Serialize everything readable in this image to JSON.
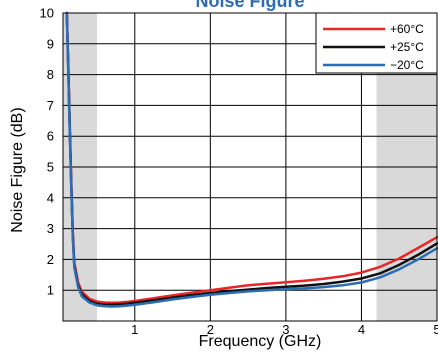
{
  "chart_data": {
    "type": "line",
    "title": "Noise Figure",
    "xlabel": "Frequency (GHz)",
    "ylabel": "Noise Figure (dB)",
    "xlim": [
      0.05,
      5
    ],
    "ylim": [
      0,
      10
    ],
    "x_ticks": [
      "1",
      "2",
      "3",
      "4",
      "5"
    ],
    "y_ticks": [
      "1",
      "2",
      "3",
      "4",
      "5",
      "6",
      "7",
      "8",
      "9",
      "10"
    ],
    "grid": true,
    "legend_position": "top-right",
    "shaded_ranges": [
      [
        0.05,
        0.5
      ],
      [
        4.2,
        5
      ]
    ],
    "series": [
      {
        "name": "+60°C",
        "color": "#e8262a",
        "x": [
          0.1,
          0.12,
          0.14,
          0.16,
          0.18,
          0.2,
          0.25,
          0.3,
          0.4,
          0.5,
          0.6,
          0.7,
          0.8,
          0.9,
          1.0,
          1.25,
          1.5,
          1.75,
          2.0,
          2.25,
          2.5,
          2.75,
          3.0,
          3.25,
          3.5,
          3.75,
          4.0,
          4.25,
          4.5,
          4.75,
          5.0
        ],
        "y": [
          10.0,
          8.3,
          6.3,
          4.5,
          2.9,
          1.9,
          1.25,
          0.95,
          0.72,
          0.63,
          0.6,
          0.59,
          0.6,
          0.62,
          0.65,
          0.74,
          0.83,
          0.92,
          1.0,
          1.08,
          1.16,
          1.21,
          1.26,
          1.31,
          1.37,
          1.45,
          1.57,
          1.76,
          2.03,
          2.37,
          2.72
        ]
      },
      {
        "name": "+25°C",
        "color": "#111111",
        "x": [
          0.1,
          0.12,
          0.14,
          0.16,
          0.18,
          0.2,
          0.25,
          0.3,
          0.4,
          0.5,
          0.6,
          0.7,
          0.8,
          0.9,
          1.0,
          1.25,
          1.5,
          1.75,
          2.0,
          2.25,
          2.5,
          2.75,
          3.0,
          3.25,
          3.5,
          3.75,
          4.0,
          4.25,
          4.5,
          4.75,
          5.0
        ],
        "y": [
          10.0,
          8.2,
          6.2,
          4.4,
          2.8,
          1.8,
          1.15,
          0.86,
          0.65,
          0.56,
          0.53,
          0.53,
          0.54,
          0.56,
          0.59,
          0.67,
          0.76,
          0.84,
          0.91,
          0.97,
          1.02,
          1.07,
          1.11,
          1.15,
          1.2,
          1.28,
          1.38,
          1.55,
          1.82,
          2.15,
          2.52
        ]
      },
      {
        "name": "−20°C",
        "color": "#2c6cb5",
        "x": [
          0.1,
          0.12,
          0.14,
          0.16,
          0.18,
          0.2,
          0.25,
          0.3,
          0.4,
          0.5,
          0.6,
          0.7,
          0.8,
          0.9,
          1.0,
          1.25,
          1.5,
          1.75,
          2.0,
          2.25,
          2.5,
          2.75,
          3.0,
          3.25,
          3.5,
          3.75,
          4.0,
          4.25,
          4.5,
          4.75,
          5.0
        ],
        "y": [
          10.0,
          8.1,
          6.1,
          4.3,
          2.7,
          1.75,
          1.1,
          0.8,
          0.6,
          0.51,
          0.48,
          0.47,
          0.48,
          0.5,
          0.53,
          0.61,
          0.7,
          0.78,
          0.85,
          0.91,
          0.96,
          1.0,
          1.03,
          1.06,
          1.1,
          1.16,
          1.25,
          1.42,
          1.68,
          2.0,
          2.36
        ]
      }
    ]
  }
}
